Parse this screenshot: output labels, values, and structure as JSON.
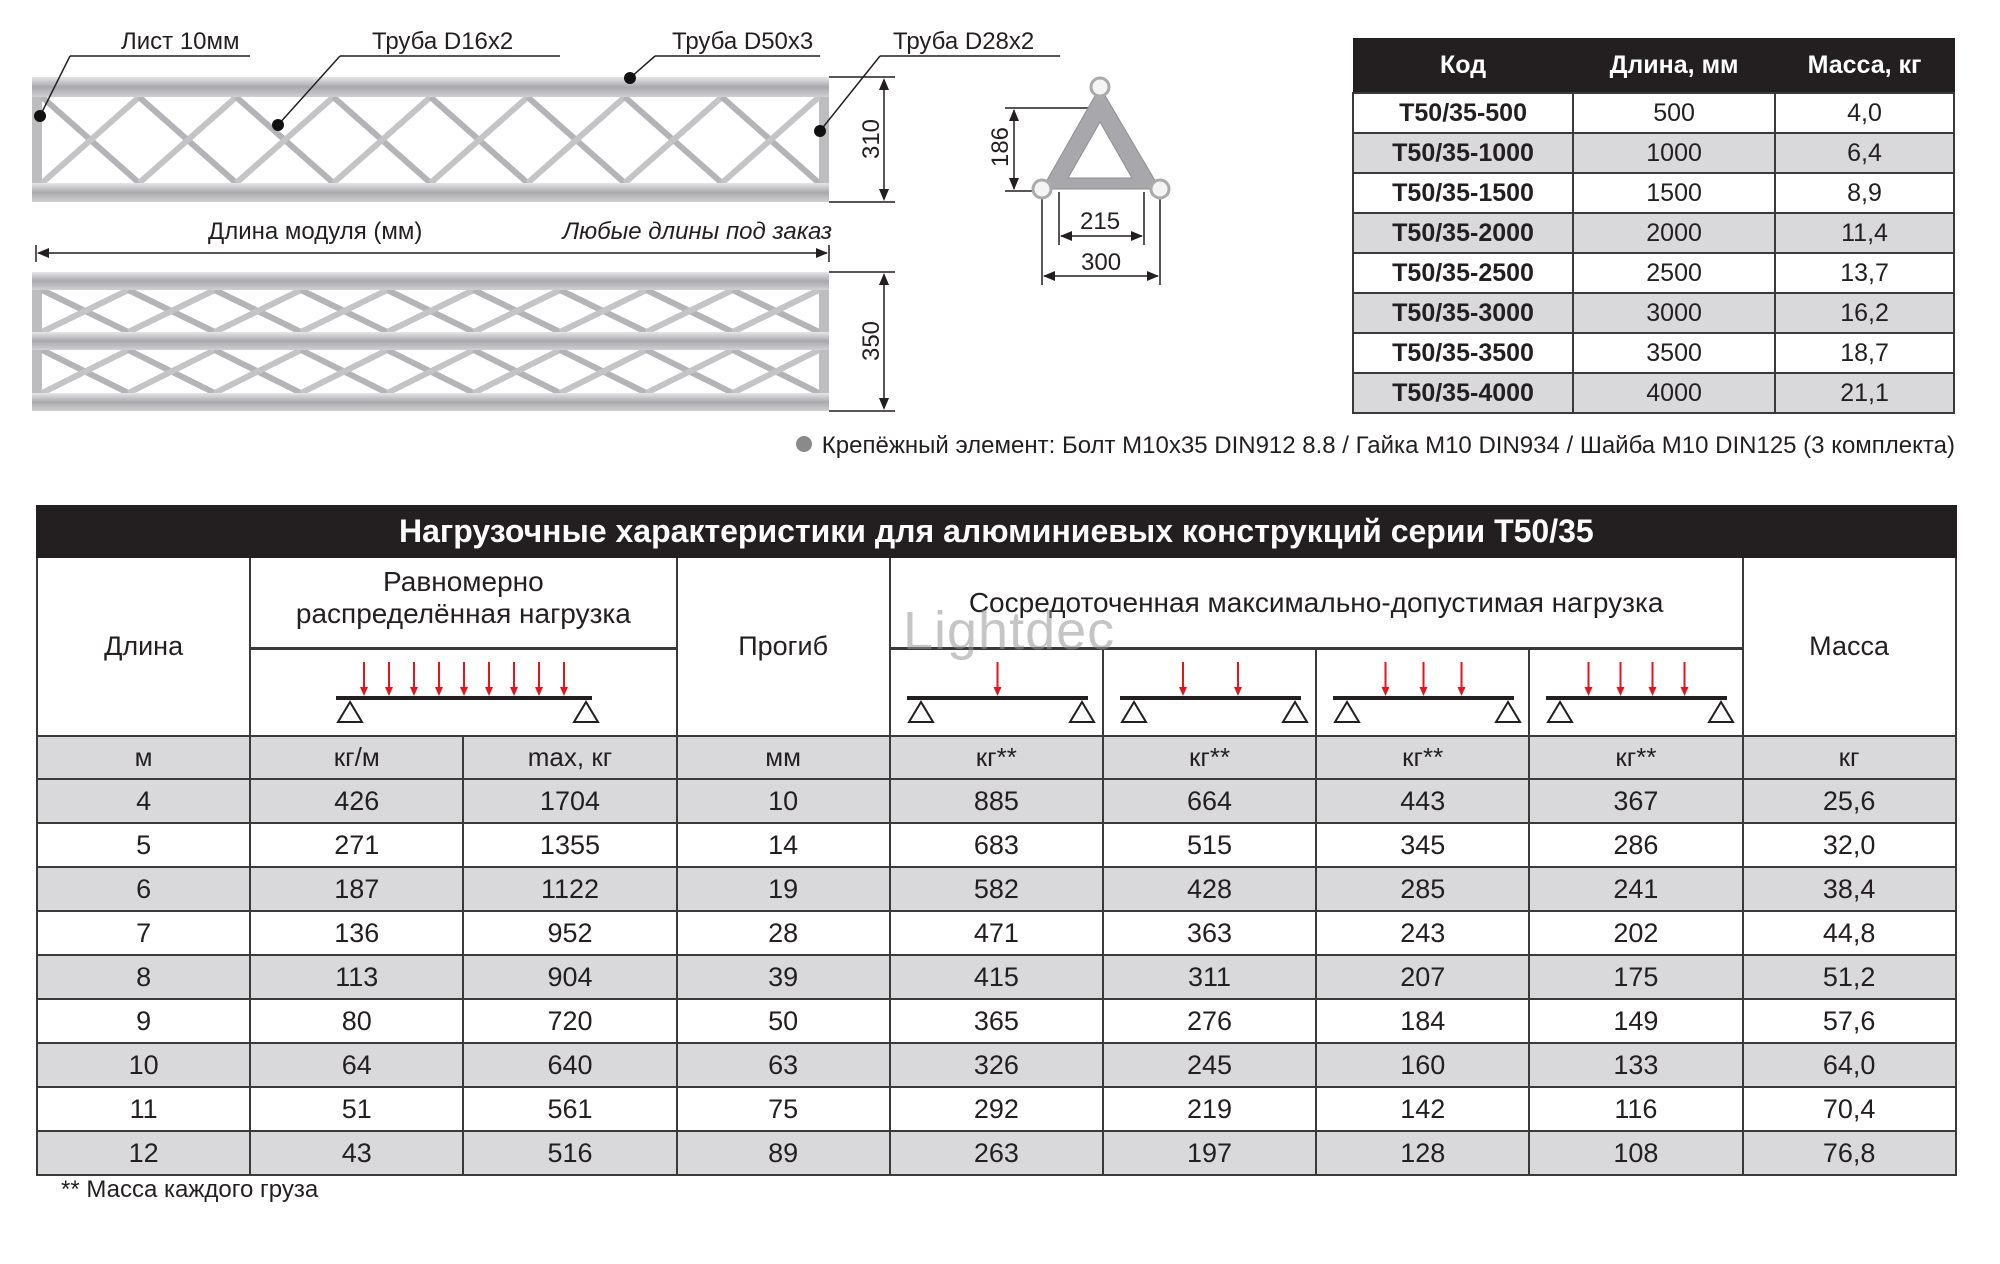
{
  "drawing": {
    "labels": {
      "sheet": "Лист 10мм",
      "tube_d16": "Труба D16x2",
      "tube_d50": "Труба D50x3",
      "tube_d28": "Труба D28x2",
      "module_length": "Длина модуля (мм)",
      "any_length": "Любые длины под заказ"
    },
    "dimensions": {
      "height_top": "310",
      "height_bottom": "350",
      "triangle_height": "186",
      "inner_width": "215",
      "outer_width": "300"
    }
  },
  "spec_table": {
    "headers": [
      "Код",
      "Длина, мм",
      "Масса, кг"
    ],
    "rows": [
      [
        "T50/35-500",
        "500",
        "4,0"
      ],
      [
        "T50/35-1000",
        "1000",
        "6,4"
      ],
      [
        "T50/35-1500",
        "1500",
        "8,9"
      ],
      [
        "T50/35-2000",
        "2000",
        "11,4"
      ],
      [
        "T50/35-2500",
        "2500",
        "13,7"
      ],
      [
        "T50/35-3000",
        "3000",
        "16,2"
      ],
      [
        "T50/35-3500",
        "3500",
        "18,7"
      ],
      [
        "T50/35-4000",
        "4000",
        "21,1"
      ]
    ]
  },
  "fastener_note": "Крепёжный элемент: Болт М10х35 DIN912 8.8 / Гайка М10 DIN934 / Шайба М10 DIN125 (3 комплекта)",
  "load_table": {
    "title": "Нагрузочные характеристики для алюминиевых конструкций серии T50/35",
    "headers": {
      "length": "Длина",
      "uniform": "Равномерно распределённая нагрузка",
      "deflection": "Прогиб",
      "concentrated": "Сосредоточенная максимально-допустимая нагрузка",
      "mass": "Масса"
    },
    "units": [
      "м",
      "кг/м",
      "max, кг",
      "мм",
      "кг**",
      "кг**",
      "кг**",
      "кг**",
      "кг"
    ],
    "rows": [
      [
        "4",
        "426",
        "1704",
        "10",
        "885",
        "664",
        "443",
        "367",
        "25,6"
      ],
      [
        "5",
        "271",
        "1355",
        "14",
        "683",
        "515",
        "345",
        "286",
        "32,0"
      ],
      [
        "6",
        "187",
        "1122",
        "19",
        "582",
        "428",
        "285",
        "241",
        "38,4"
      ],
      [
        "7",
        "136",
        "952",
        "28",
        "471",
        "363",
        "243",
        "202",
        "44,8"
      ],
      [
        "8",
        "113",
        "904",
        "39",
        "415",
        "311",
        "207",
        "175",
        "51,2"
      ],
      [
        "9",
        "80",
        "720",
        "50",
        "365",
        "276",
        "184",
        "149",
        "57,6"
      ],
      [
        "10",
        "64",
        "640",
        "63",
        "326",
        "245",
        "160",
        "133",
        "64,0"
      ],
      [
        "11",
        "51",
        "561",
        "75",
        "292",
        "219",
        "142",
        "116",
        "70,4"
      ],
      [
        "12",
        "43",
        "516",
        "89",
        "263",
        "197",
        "128",
        "108",
        "76,8"
      ]
    ]
  },
  "footnote": "** Масса каждого груза",
  "watermark": "Lightdec",
  "colors": {
    "header_bg": "#231f20",
    "row_alt": "#d9d9dc",
    "load_arrow": "#e3161d"
  }
}
